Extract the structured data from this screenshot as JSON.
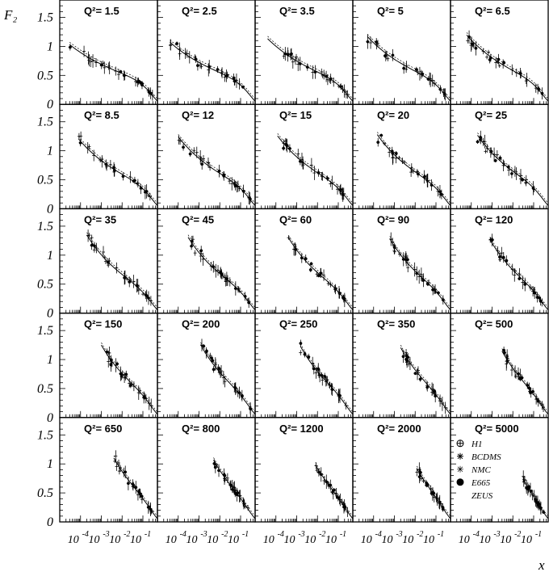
{
  "chart_data": {
    "type": "scatter",
    "grid": "5x5 panels",
    "y_axis_label": "F₂",
    "x_axis_label": "x",
    "x_scale": "log",
    "x_range": [
      1e-05,
      0.5
    ],
    "y_range": [
      0,
      1.8
    ],
    "y_ticks": [
      "0",
      "0.5",
      "1",
      "1.5"
    ],
    "y_tick_values": [
      0,
      0.5,
      1,
      1.5
    ],
    "x_ticks": [
      {
        "base": "10",
        "exp": "-4"
      },
      {
        "base": "10",
        "exp": "-3"
      },
      {
        "base": "10",
        "exp": "-2"
      },
      {
        "base": "10",
        "exp": "-1"
      }
    ],
    "x_tick_values": [
      0.0001,
      0.001,
      0.01,
      0.1
    ],
    "panels": [
      {
        "label": "Q²= 1.5",
        "Q2": 1.5,
        "x_min": 3e-05
      },
      {
        "label": "Q²= 2.5",
        "Q2": 2.5,
        "x_min": 4e-05
      },
      {
        "label": "Q²= 3.5",
        "Q2": 3.5,
        "x_min": 4e-05
      },
      {
        "label": "Q²= 5",
        "Q2": 5,
        "x_min": 5e-05
      },
      {
        "label": "Q²= 6.5",
        "Q2": 6.5,
        "x_min": 6e-05
      },
      {
        "label": "Q²= 8.5",
        "Q2": 8.5,
        "x_min": 8e-05
      },
      {
        "label": "Q²= 12",
        "Q2": 12,
        "x_min": 0.0001
      },
      {
        "label": "Q²= 15",
        "Q2": 15,
        "x_min": 0.00012
      },
      {
        "label": "Q²= 20",
        "Q2": 20,
        "x_min": 0.00015
      },
      {
        "label": "Q²= 25",
        "Q2": 25,
        "x_min": 0.0002
      },
      {
        "label": "Q²= 35",
        "Q2": 35,
        "x_min": 0.0002
      },
      {
        "label": "Q²= 45",
        "Q2": 45,
        "x_min": 0.0003
      },
      {
        "label": "Q²= 60",
        "Q2": 60,
        "x_min": 0.0004
      },
      {
        "label": "Q²= 90",
        "Q2": 90,
        "x_min": 0.0006
      },
      {
        "label": "Q²= 120",
        "Q2": 120,
        "x_min": 0.0008
      },
      {
        "label": "Q²= 150",
        "Q2": 150,
        "x_min": 0.001
      },
      {
        "label": "Q²= 200",
        "Q2": 200,
        "x_min": 0.0012
      },
      {
        "label": "Q²= 250",
        "Q2": 250,
        "x_min": 0.0015
      },
      {
        "label": "Q²= 350",
        "Q2": 350,
        "x_min": 0.002
      },
      {
        "label": "Q²= 500",
        "Q2": 500,
        "x_min": 0.003
      },
      {
        "label": "Q²= 650",
        "Q2": 650,
        "x_min": 0.004
      },
      {
        "label": "Q²= 800",
        "Q2": 800,
        "x_min": 0.005
      },
      {
        "label": "Q²= 1200",
        "Q2": 1200,
        "x_min": 0.008
      },
      {
        "label": "Q²= 2000",
        "Q2": 2000,
        "x_min": 0.012
      },
      {
        "label": "Q²= 5000",
        "Q2": 5000,
        "x_min": 0.03
      }
    ],
    "legend": {
      "placement": "inside bottom-right panel",
      "entries": [
        {
          "label": "H1",
          "marker": "circled-cross"
        },
        {
          "label": "BCDMS",
          "marker": "asterisk"
        },
        {
          "label": "NMC",
          "marker": "star"
        },
        {
          "label": "E665",
          "marker": "filled-circle"
        },
        {
          "label": "ZEUS",
          "marker": "none"
        }
      ]
    }
  }
}
